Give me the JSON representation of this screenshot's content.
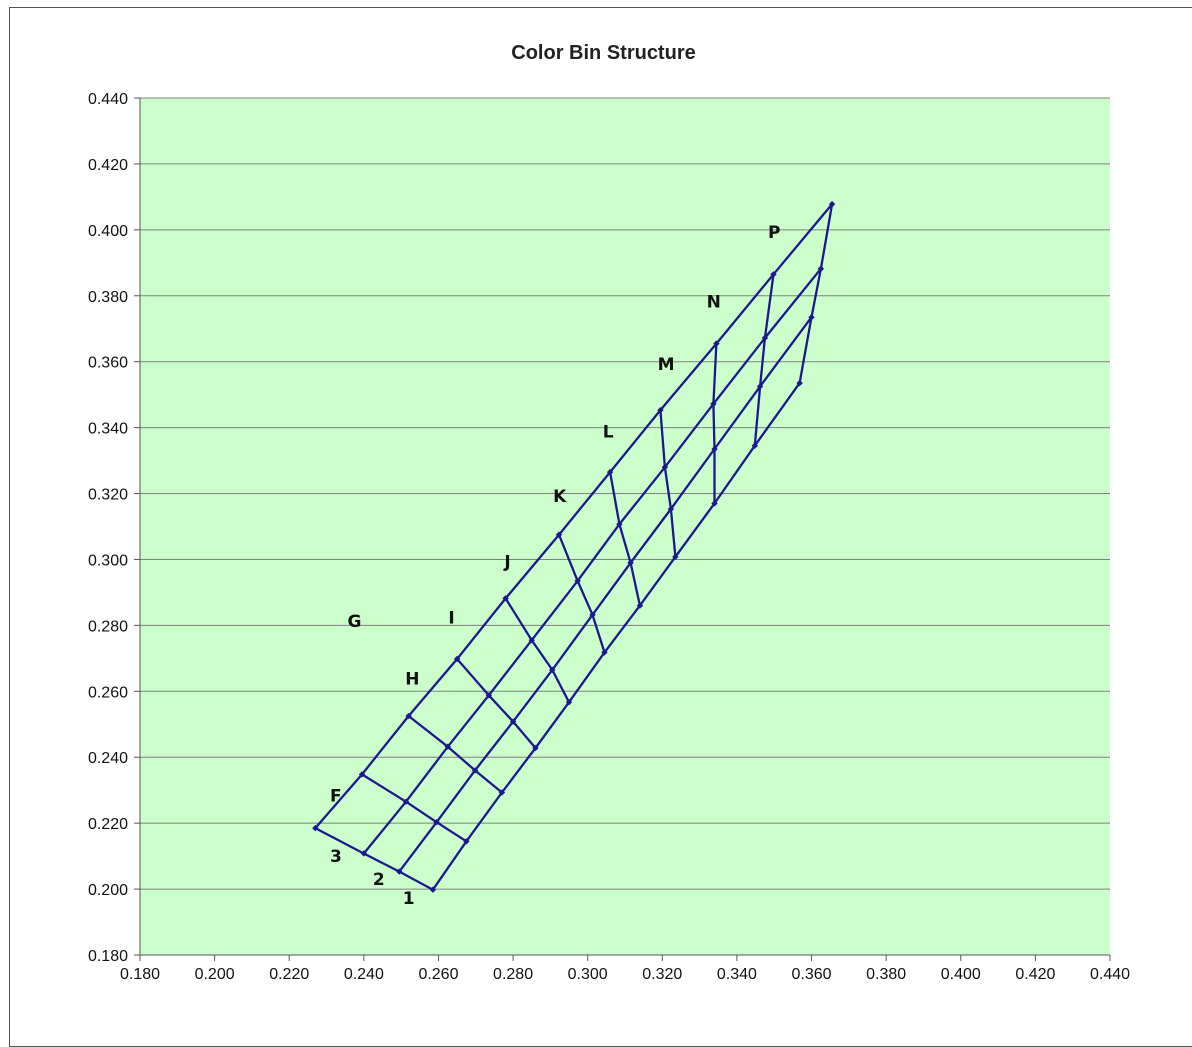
{
  "chart_data": {
    "type": "line",
    "title": "Color Bin Structure",
    "xlabel": "",
    "ylabel": "",
    "xlim": [
      0.18,
      0.44
    ],
    "ylim": [
      0.18,
      0.44
    ],
    "x_ticks": [
      "0.180",
      "0.200",
      "0.220",
      "0.240",
      "0.260",
      "0.280",
      "0.300",
      "0.320",
      "0.340",
      "0.360",
      "0.380",
      "0.400",
      "0.420",
      "0.440"
    ],
    "y_ticks": [
      "0.180",
      "0.200",
      "0.220",
      "0.240",
      "0.260",
      "0.280",
      "0.300",
      "0.320",
      "0.340",
      "0.360",
      "0.380",
      "0.400",
      "0.420",
      "0.440"
    ],
    "grid": "horizontal",
    "plot_background": "#ccffcc",
    "gridline_color": "#808080",
    "line_color": "#1a1a8c",
    "grid_rows": [
      [
        [
          0.227,
          0.2185
        ],
        [
          0.2395,
          0.2348
        ],
        [
          0.252,
          0.2525
        ],
        [
          0.265,
          0.2698
        ],
        [
          0.278,
          0.2882
        ],
        [
          0.2923,
          0.3075
        ],
        [
          0.306,
          0.3265
        ],
        [
          0.3195,
          0.3453
        ],
        [
          0.3345,
          0.3655
        ],
        [
          0.3498,
          0.3865
        ],
        [
          0.3655,
          0.4078
        ]
      ],
      [
        [
          0.24,
          0.2108
        ],
        [
          0.2513,
          0.2265
        ],
        [
          0.2625,
          0.2432
        ],
        [
          0.2735,
          0.2588
        ],
        [
          0.285,
          0.2755
        ],
        [
          0.2973,
          0.2935
        ],
        [
          0.3085,
          0.3107
        ],
        [
          0.3207,
          0.328
        ],
        [
          0.3337,
          0.3472
        ],
        [
          0.3475,
          0.3672
        ],
        [
          0.3625,
          0.3882
        ]
      ],
      [
        [
          0.2495,
          0.2053
        ],
        [
          0.2595,
          0.2203
        ],
        [
          0.2698,
          0.236
        ],
        [
          0.28,
          0.2508
        ],
        [
          0.2905,
          0.2665
        ],
        [
          0.3013,
          0.2832
        ],
        [
          0.3115,
          0.299
        ],
        [
          0.3223,
          0.3153
        ],
        [
          0.334,
          0.3335
        ],
        [
          0.3462,
          0.3525
        ],
        [
          0.36,
          0.3735
        ]
      ],
      [
        [
          0.2585,
          0.1998
        ],
        [
          0.2675,
          0.2145
        ],
        [
          0.277,
          0.2293
        ],
        [
          0.286,
          0.2428
        ],
        [
          0.295,
          0.2567
        ],
        [
          0.3045,
          0.2718
        ],
        [
          0.314,
          0.286
        ],
        [
          0.3235,
          0.3008
        ],
        [
          0.334,
          0.317
        ],
        [
          0.3448,
          0.3345
        ],
        [
          0.3568,
          0.3535
        ]
      ]
    ],
    "column_labels": [
      {
        "text": "F",
        "x": 0.2325,
        "y": 0.2265
      },
      {
        "text": "G",
        "x": 0.2375,
        "y": 0.2795
      },
      {
        "text": "H",
        "x": 0.253,
        "y": 0.262
      },
      {
        "text": "I",
        "x": 0.2635,
        "y": 0.2805
      },
      {
        "text": "J",
        "x": 0.2785,
        "y": 0.2975
      },
      {
        "text": "K",
        "x": 0.2925,
        "y": 0.3175
      },
      {
        "text": "L",
        "x": 0.3055,
        "y": 0.337
      },
      {
        "text": "M",
        "x": 0.321,
        "y": 0.3575
      },
      {
        "text": "N",
        "x": 0.3338,
        "y": 0.3765
      },
      {
        "text": "P",
        "x": 0.35,
        "y": 0.3975
      }
    ],
    "row_labels": [
      {
        "text": "3",
        "x": 0.2325,
        "y": 0.2082
      },
      {
        "text": "2",
        "x": 0.244,
        "y": 0.2012
      },
      {
        "text": "1",
        "x": 0.252,
        "y": 0.1955
      }
    ]
  }
}
